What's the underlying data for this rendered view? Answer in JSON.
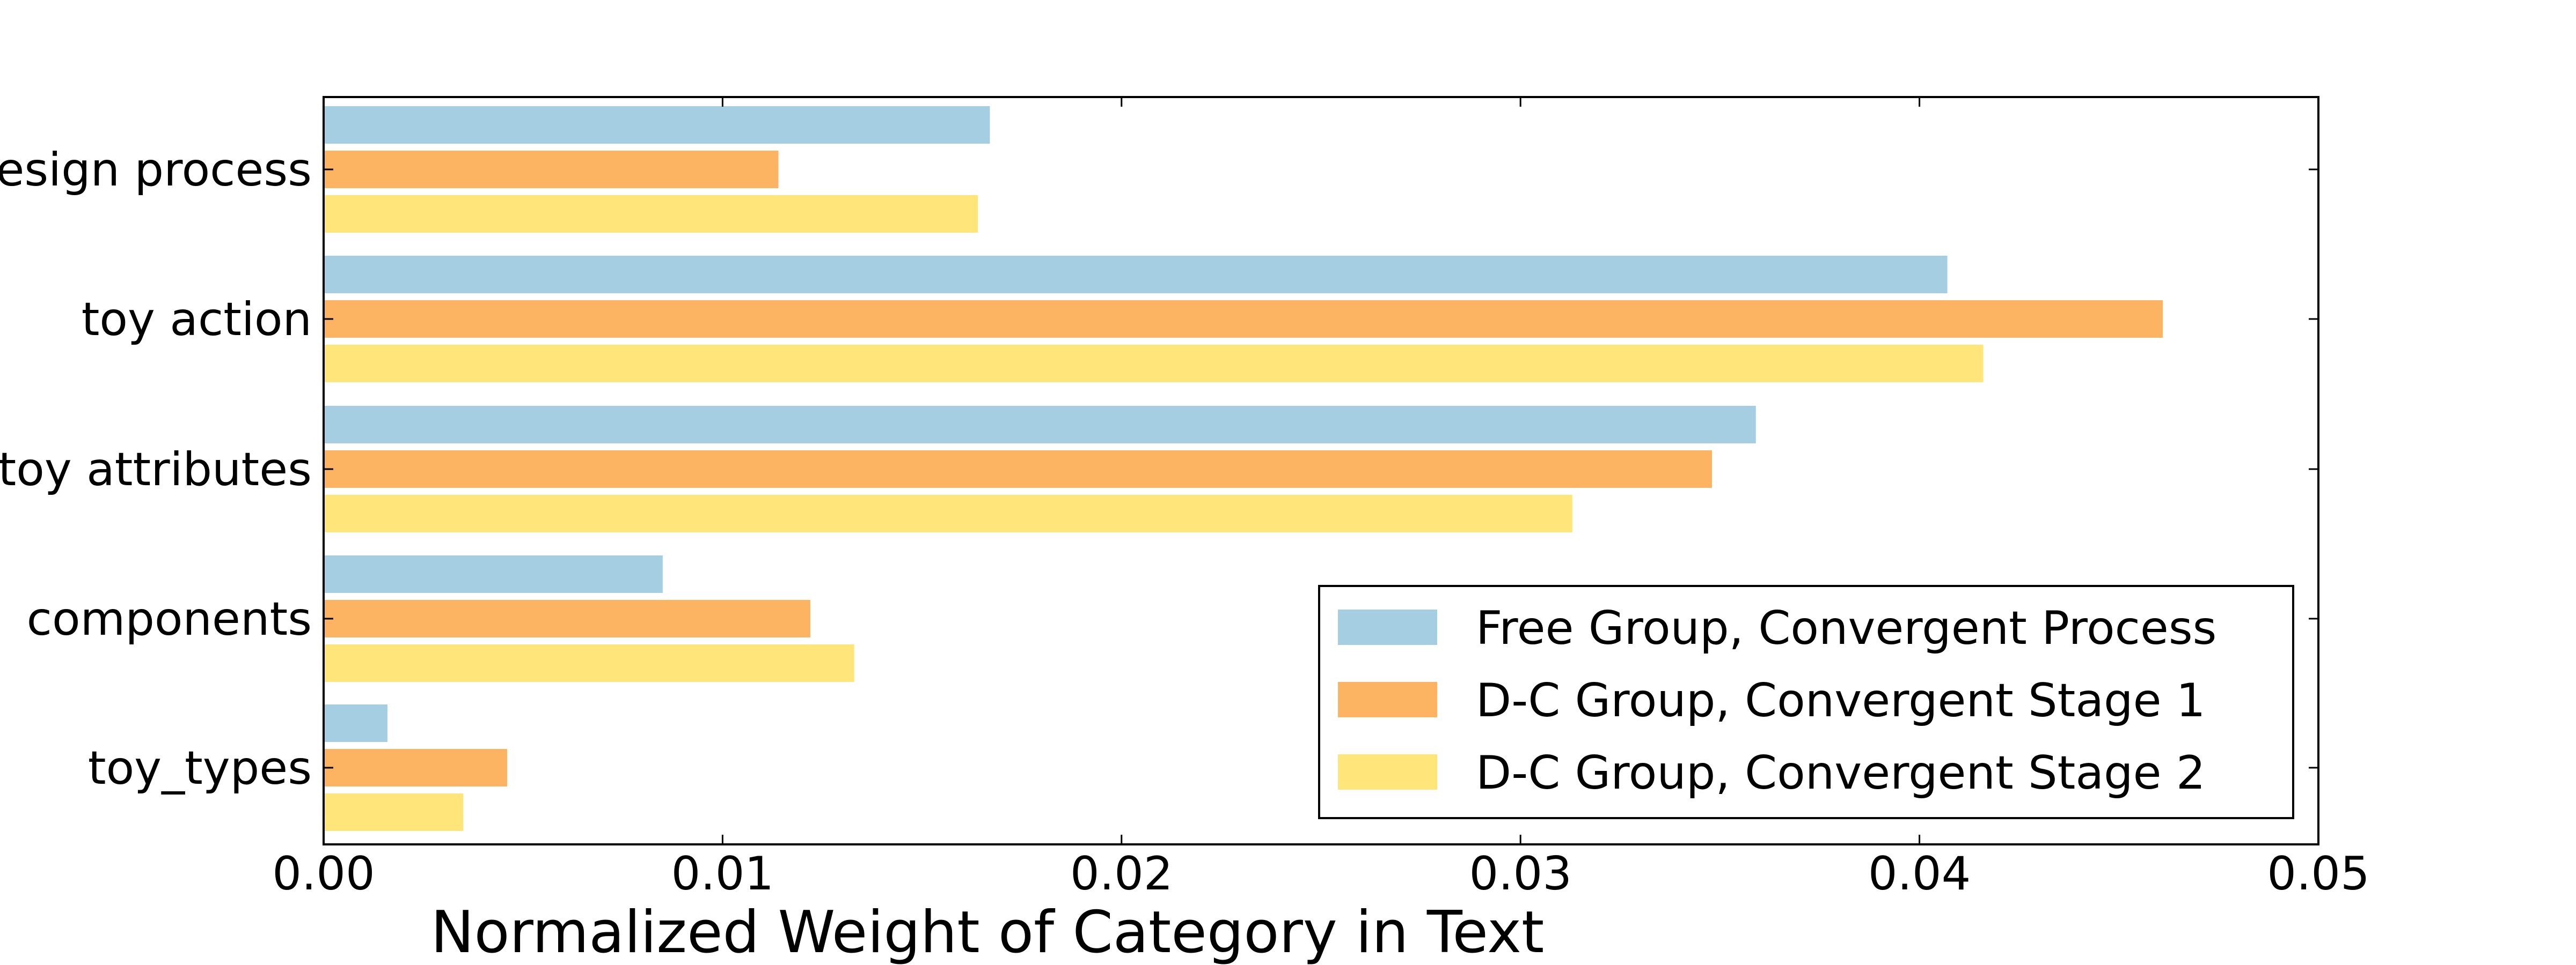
{
  "chart_data": {
    "type": "bar",
    "orientation": "horizontal",
    "title": "",
    "xlabel": "Normalized Weight of Category in Text",
    "ylabel": "",
    "xlim": [
      0,
      0.05
    ],
    "xticks": [
      {
        "value": 0.0,
        "label": "0.00"
      },
      {
        "value": 0.01,
        "label": "0.01"
      },
      {
        "value": 0.02,
        "label": "0.02"
      },
      {
        "value": 0.03,
        "label": "0.03"
      },
      {
        "value": 0.04,
        "label": "0.04"
      },
      {
        "value": 0.05,
        "label": "0.05"
      }
    ],
    "categories": [
      "design process",
      "toy action",
      "toy attributes",
      "components",
      "toy_types"
    ],
    "series": [
      {
        "name": "Free Group, Convergent Process",
        "color": "#a6cee3",
        "values": [
          0.0167,
          0.0407,
          0.0359,
          0.0085,
          0.0016
        ]
      },
      {
        "name": "D-C Group, Convergent Stage 1",
        "color": "#fdb462",
        "values": [
          0.0114,
          0.0461,
          0.0348,
          0.0122,
          0.0046
        ]
      },
      {
        "name": "D-C Group, Convergent Stage 2",
        "color": "#ffe57a",
        "values": [
          0.0164,
          0.0416,
          0.0313,
          0.0133,
          0.0035
        ]
      }
    ],
    "grid": false,
    "legend": "lower-right"
  }
}
